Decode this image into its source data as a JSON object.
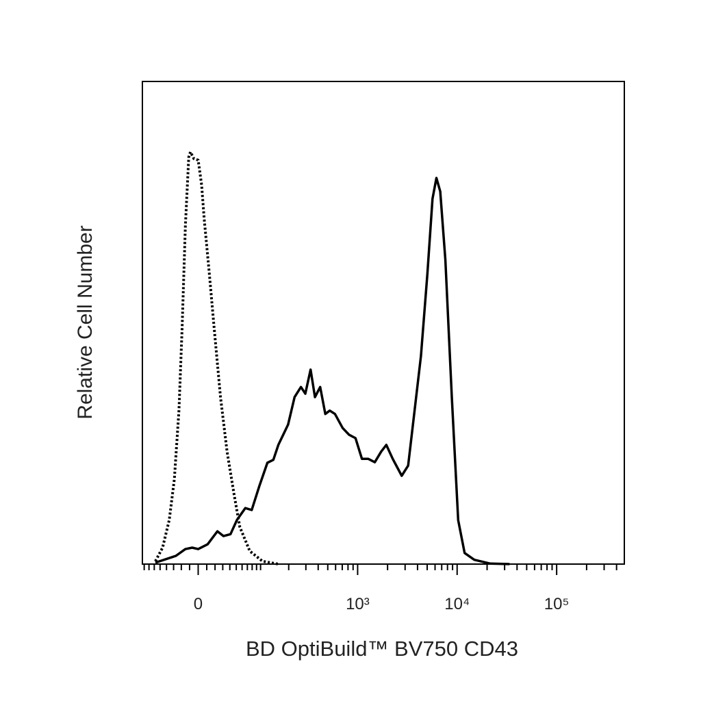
{
  "chart_data": {
    "type": "histogram-overlay",
    "xlabel": "BD OptiBuild™ BV750 CD43",
    "ylabel": "Relative Cell Number",
    "xscale": "asinh",
    "asinh_cofactor": 50,
    "xlim": [
      -84,
      478700
    ],
    "ylim": [
      0,
      100
    ],
    "xticks": [
      0,
      {
        "value": 1000,
        "label": "10³"
      },
      {
        "value": 10000,
        "label": "10⁴"
      },
      {
        "value": 100000,
        "label": "10⁵"
      }
    ],
    "xminorticks": [
      -80,
      -70,
      -60,
      -50,
      -40,
      -30,
      -20,
      -10,
      10,
      20,
      30,
      40,
      50,
      60,
      70,
      80,
      90,
      100,
      200,
      300,
      400,
      500,
      600,
      700,
      800,
      900,
      2000,
      3000,
      4000,
      5000,
      6000,
      7000,
      8000,
      9000,
      20000,
      30000,
      40000,
      50000,
      60000,
      70000,
      80000,
      90000,
      200000,
      300000,
      400000
    ],
    "series": [
      {
        "color": "#000000",
        "dash": "dotted",
        "x": [
          -58,
          -46,
          -36,
          -29,
          -23,
          -19,
          -15,
          -11,
          -9,
          -5,
          0,
          4,
          7,
          13,
          19,
          27,
          36,
          46,
          56,
          75,
          105,
          156
        ],
        "values": [
          0.6,
          3.4,
          9.1,
          17.6,
          31.8,
          48.8,
          70.1,
          84.3,
          85.4,
          84.0,
          83.7,
          78.6,
          71.5,
          60.3,
          48.8,
          34.6,
          23.3,
          14.8,
          7.7,
          2.7,
          0.6,
          0
        ]
      },
      {
        "color": "#000000",
        "dash": "solid",
        "x": [
          -58,
          -27,
          -15,
          -7,
          0,
          11,
          23,
          31,
          41,
          51,
          66,
          79,
          97,
          119,
          138,
          156,
          197,
          230,
          267,
          296,
          335,
          371,
          419,
          472,
          524,
          591,
          706,
          820,
          951,
          1104,
          1281,
          1487,
          1725,
          1942,
          2253,
          2773,
          3217,
          3733,
          4330,
          5025,
          5658,
          6188,
          6763,
          7618,
          8838,
          10253,
          11895,
          14863,
          21550,
          33650
        ],
        "values": [
          0.3,
          1.7,
          3.1,
          3.4,
          3.1,
          4.1,
          6.8,
          5.8,
          6.2,
          9.1,
          11.6,
          11.2,
          16.2,
          21.0,
          21.6,
          24.7,
          28.9,
          34.6,
          36.7,
          35.3,
          40.3,
          34.6,
          36.7,
          31.1,
          31.8,
          31.1,
          28.2,
          26.8,
          26.1,
          21.8,
          21.8,
          21.1,
          23.3,
          24.7,
          21.8,
          18.3,
          20.4,
          31.8,
          43.1,
          60.1,
          75.7,
          80.0,
          77.2,
          63.0,
          34.6,
          9.1,
          2.3,
          0.9,
          0.1,
          0
        ]
      }
    ]
  }
}
